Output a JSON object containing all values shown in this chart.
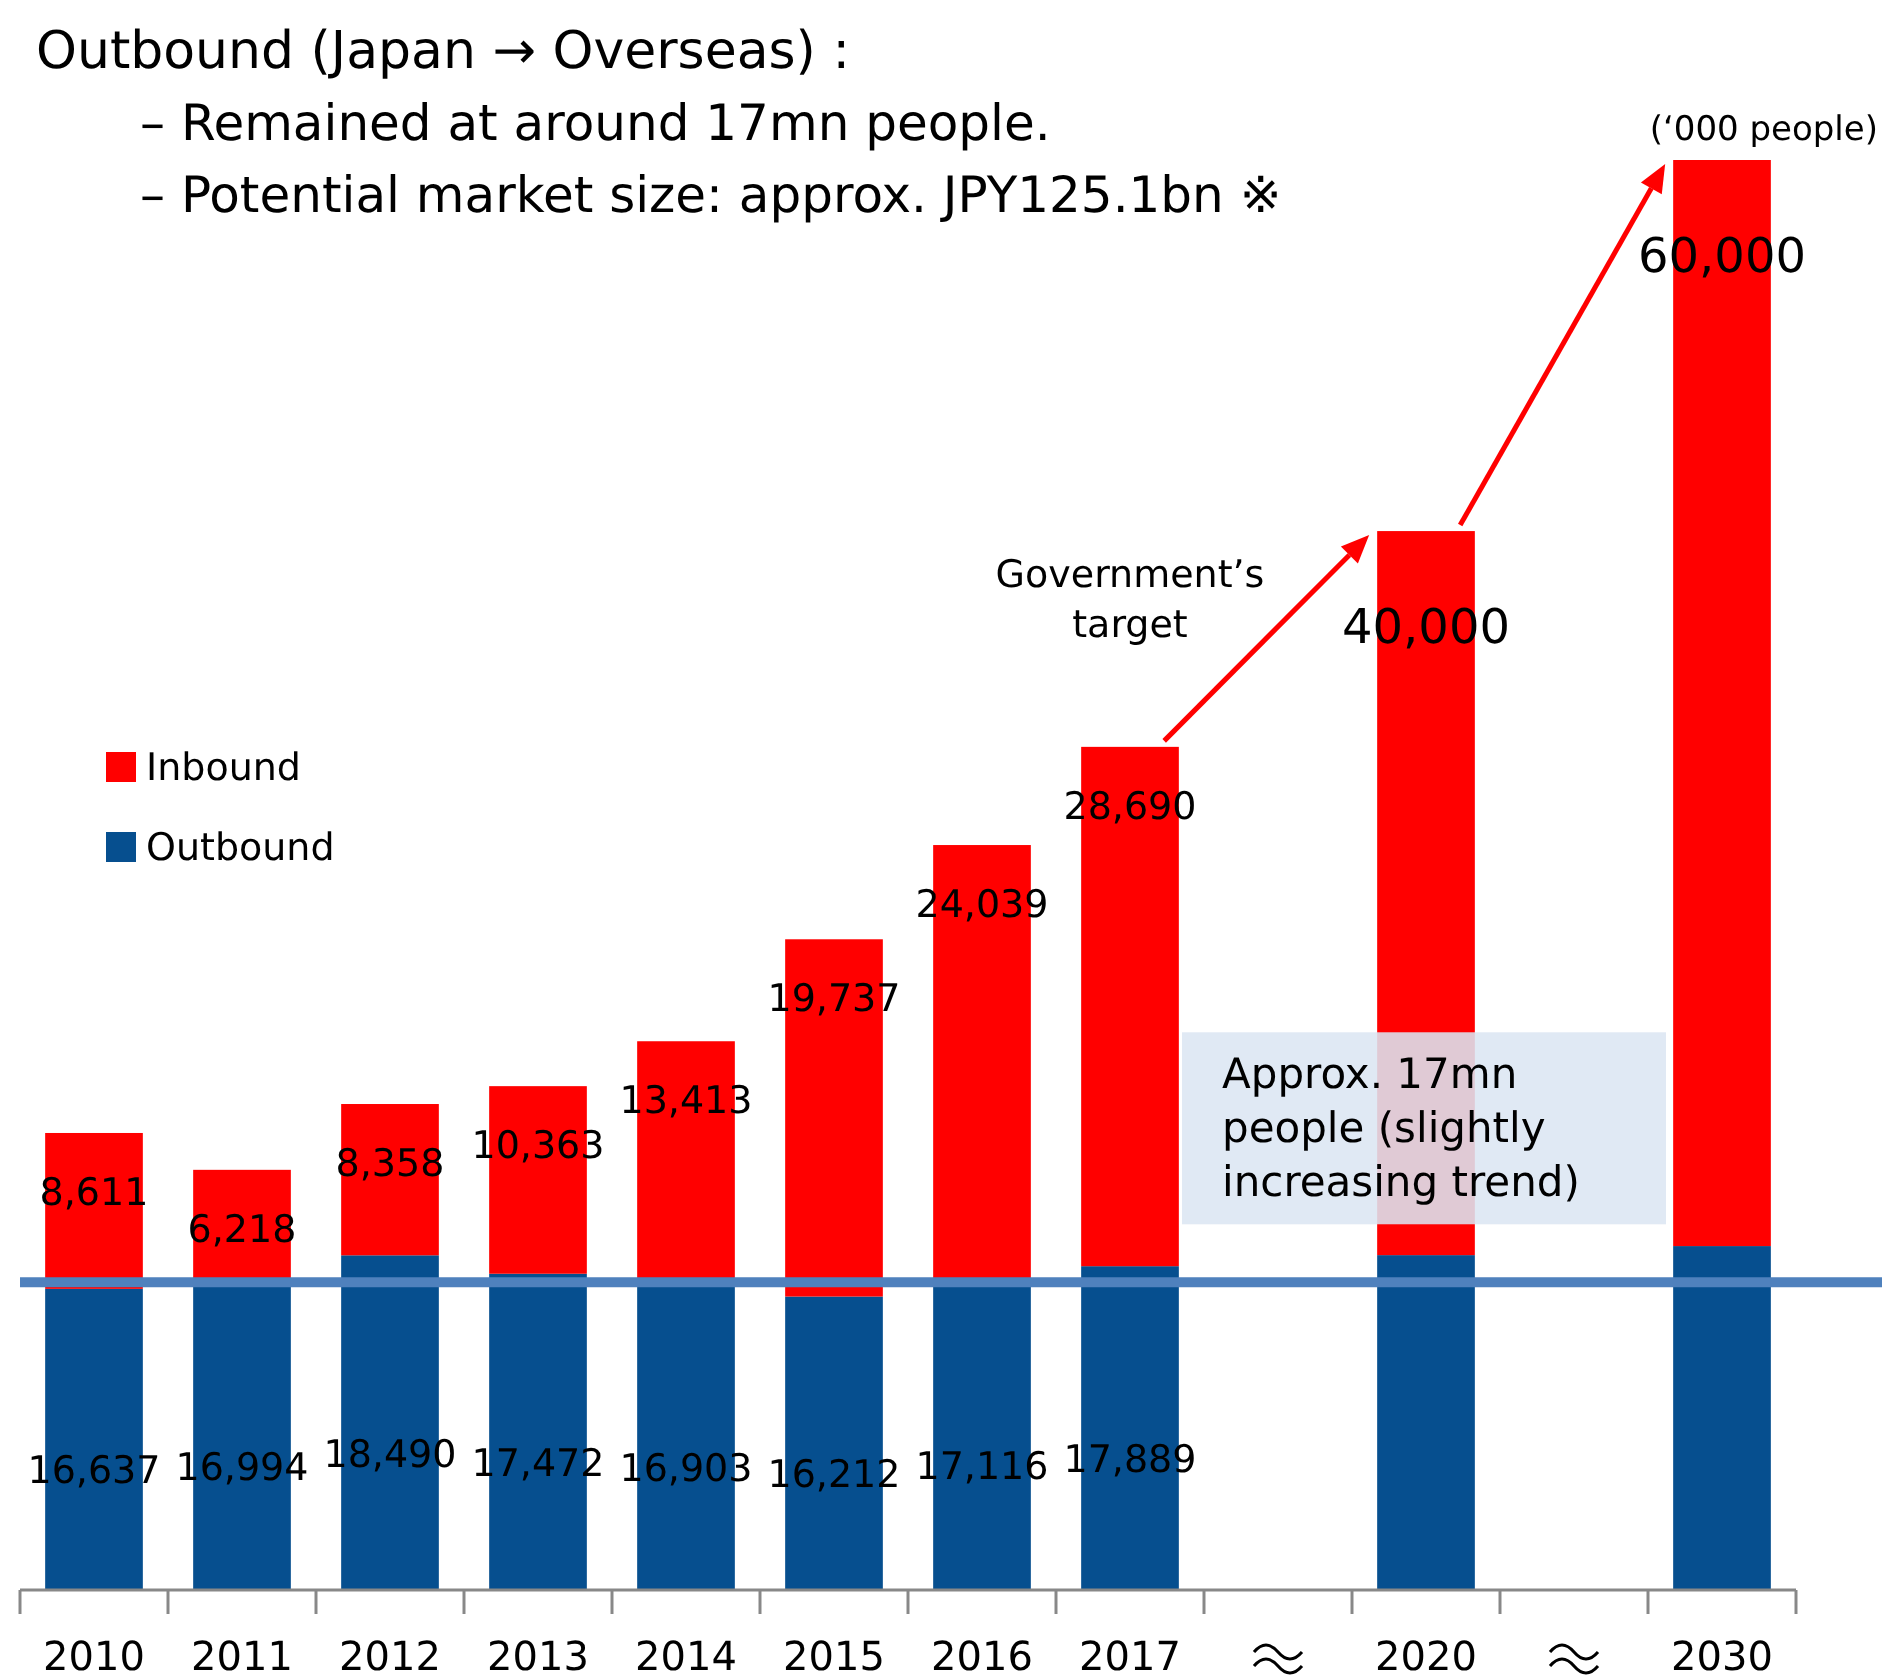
{
  "chart_data": {
    "type": "bar",
    "stacked": true,
    "title": "Outbound (Japan → Overseas) :",
    "categories": [
      "2010",
      "2011",
      "2012",
      "2013",
      "2014",
      "2015",
      "2016",
      "2017",
      null,
      "2020",
      null,
      "2030"
    ],
    "series": [
      {
        "name": "Outbound",
        "color": "#064f8f",
        "values": [
          16637,
          16994,
          18490,
          17472,
          16903,
          16212,
          17116,
          17889,
          null,
          18500,
          null,
          19000
        ],
        "value_labels": [
          "16,637",
          "16,994",
          "18,490",
          "17,472",
          "16,903",
          "16,212",
          "17,116",
          "17,889",
          null,
          null,
          null,
          null
        ]
      },
      {
        "name": "Inbound",
        "color": "#ff0000",
        "values": [
          8611,
          6218,
          8358,
          10363,
          13413,
          19737,
          24039,
          28690,
          null,
          40000,
          null,
          60000
        ],
        "value_labels": [
          "8,611",
          "6,218",
          "8,358",
          "10,363",
          "13,413",
          "19,737",
          "24,039",
          "28,690",
          null,
          "40,000",
          null,
          "60,000"
        ]
      }
    ],
    "legend": "left",
    "ref_lines": [
      {
        "axis": "y",
        "value": 17000,
        "color": "#4f81bd",
        "label": "Approx. 17mn people (slightly increasing trend)"
      }
    ],
    "annotations": [
      "– Remained at around 17mn people.",
      "– Potential market size: approx. JPY125.1bn ※",
      "(‘000 people)",
      "Government’s target"
    ]
  }
}
